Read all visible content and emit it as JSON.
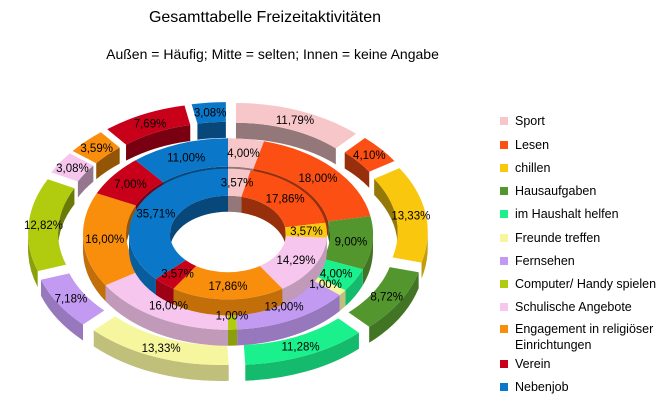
{
  "chart_data": {
    "type": "doughnut",
    "title": "Gesamttabelle Freizeitaktivitäten",
    "subtitle": "Außen = Häufig; Mitte = selten; Innen = keine Angabe",
    "categories": [
      "Sport",
      "Lesen",
      "chillen",
      "Hausaufgaben",
      "im Haushalt helfen",
      "Freunde treffen",
      "Fernsehen",
      "Computer/ Handy spielen",
      "Schulische Angebote",
      "Engagement in religiöser Einrichtungen",
      "Verein",
      "Nebenjob"
    ],
    "colors": [
      "#F7C6C9",
      "#FB4F14",
      "#F9C80E",
      "#53962D",
      "#1AF08C",
      "#F6F69E",
      "#C29AF2",
      "#B1CC0E",
      "#F7C6EF",
      "#F98E0C",
      "#C8001A",
      "#0B77C9"
    ],
    "series": [
      {
        "ring": "outer",
        "values": [
          11.79,
          4.1,
          13.33,
          8.72,
          11.28,
          13.33,
          7.18,
          12.82,
          3.08,
          3.59,
          7.69,
          3.08
        ],
        "labels": [
          "11,79%",
          "4,10%",
          "13,33%",
          "8,72%",
          "11,28%",
          "13,33%",
          "7,18%",
          "12,82%",
          "3,08%",
          "3,59%",
          "7,69%",
          "3,08%"
        ]
      },
      {
        "ring": "middle",
        "values": [
          4.0,
          18.0,
          0,
          9.0,
          4.0,
          1.0,
          13.0,
          1.0,
          16.0,
          16.0,
          7.0,
          11.0
        ],
        "labels": [
          "4,00%",
          "18,00%",
          "",
          "9,00%",
          "4,00%",
          "1,00%",
          "13,00%",
          "1,00%",
          "16,00%",
          "16,00%",
          "7,00%",
          "11,00%"
        ]
      },
      {
        "ring": "inner",
        "values": [
          3.57,
          17.86,
          3.57,
          0,
          0,
          0,
          0,
          0,
          14.29,
          17.86,
          3.57,
          35.71
        ],
        "labels": [
          "3,57%",
          "17,86%",
          "3,57%",
          "",
          "",
          "",
          "",
          "",
          "14,29%",
          "17,86%",
          "3,57%",
          "35,71%"
        ]
      }
    ],
    "legend_position": "right"
  }
}
